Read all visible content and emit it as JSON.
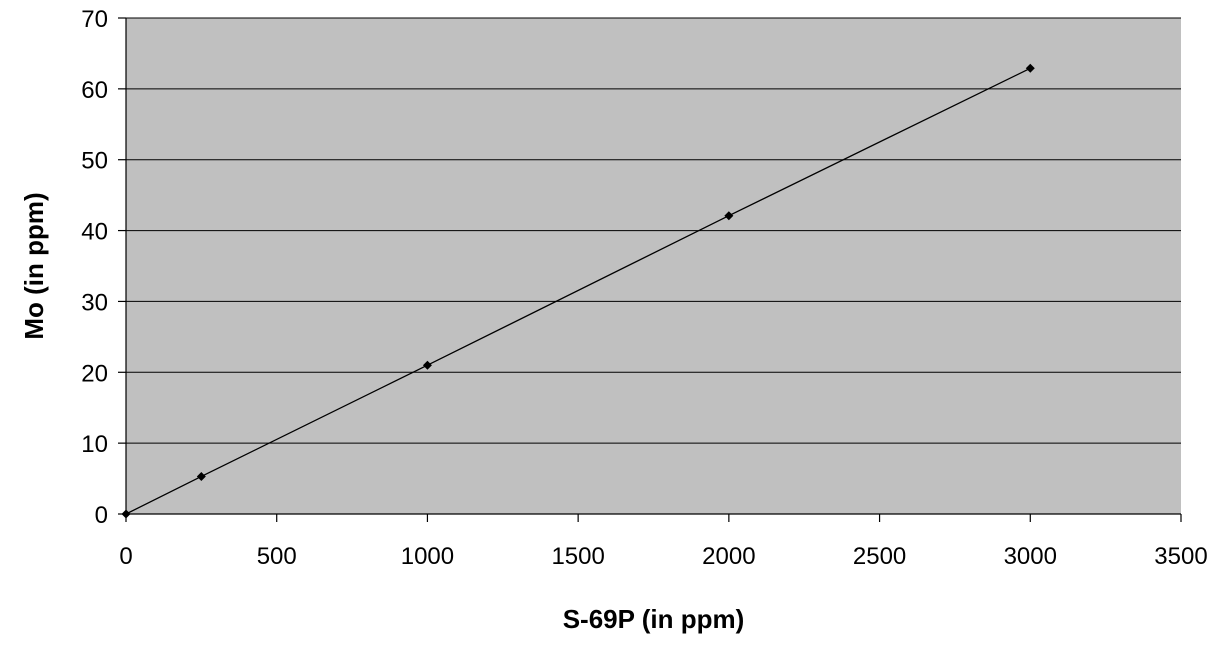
{
  "chart_data": {
    "type": "line",
    "title": "",
    "xlabel": "S-69P (in ppm)",
    "ylabel": "Mo (in ppm)",
    "xlim": [
      0,
      3500
    ],
    "ylim": [
      0,
      70
    ],
    "xticks": [
      0,
      500,
      1000,
      1500,
      2000,
      2500,
      3000,
      3500
    ],
    "yticks": [
      0,
      10,
      20,
      30,
      40,
      50,
      60,
      70
    ],
    "grid": "horizontal",
    "legend": "none",
    "plot_background": "#C0C0C0",
    "series": [
      {
        "color": "#000000",
        "marker": "diamond",
        "points": [
          {
            "x": 0,
            "y": 0
          },
          {
            "x": 250,
            "y": 5.3
          },
          {
            "x": 1000,
            "y": 21
          },
          {
            "x": 2000,
            "y": 42.1
          },
          {
            "x": 3000,
            "y": 62.9
          }
        ]
      }
    ]
  }
}
